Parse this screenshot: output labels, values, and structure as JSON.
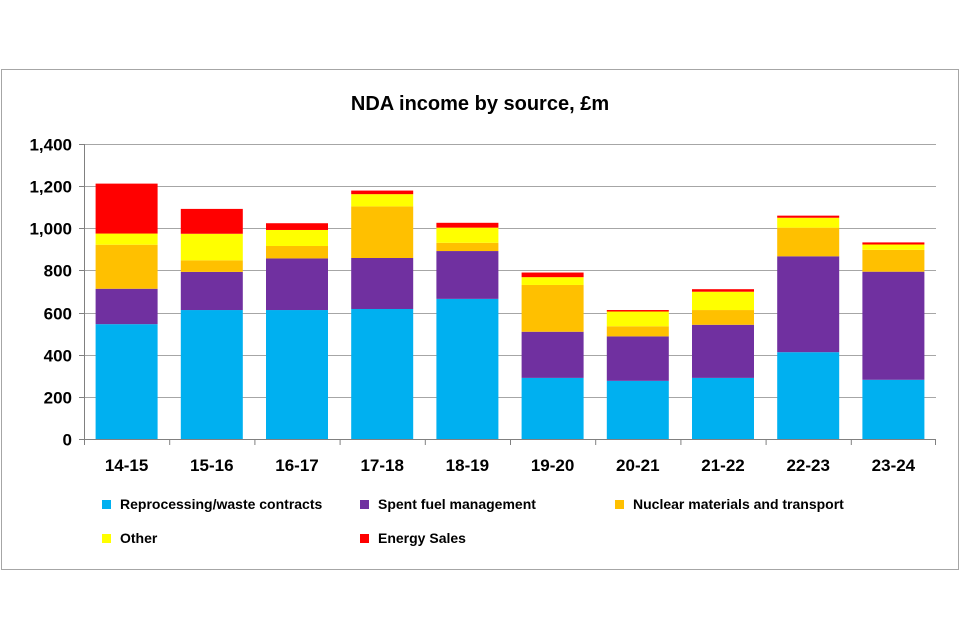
{
  "chart_data": {
    "type": "bar",
    "stacked": true,
    "title": "NDA income by source, £m",
    "xlabel": "",
    "ylabel": "",
    "ylim": [
      0,
      1400
    ],
    "yticks": [
      0,
      200,
      400,
      600,
      800,
      1000,
      1200,
      1400
    ],
    "ytick_labels": [
      "0",
      "200",
      "400",
      "600",
      "800",
      "1,000",
      "1,200",
      "1,400"
    ],
    "grid": true,
    "legend_position": "bottom",
    "categories": [
      "14-15",
      "15-16",
      "16-17",
      "17-18",
      "18-19",
      "19-20",
      "20-21",
      "21-22",
      "22-23",
      "23-24"
    ],
    "series": [
      {
        "name": "Reprocessing/waste contracts",
        "color": "#00b0f0",
        "values": [
          545,
          612,
          612,
          617,
          665,
          290,
          276,
          290,
          412,
          281
        ]
      },
      {
        "name": "Spent fuel management",
        "color": "#7030a0",
        "values": [
          168,
          181,
          245,
          242,
          227,
          219,
          211,
          252,
          455,
          513
        ]
      },
      {
        "name": "Nuclear materials and transport",
        "color": "#ffc000",
        "values": [
          209,
          55,
          59,
          245,
          39,
          222,
          48,
          70,
          136,
          104
        ]
      },
      {
        "name": "Other",
        "color": "#ffff00",
        "values": [
          53,
          126,
          76,
          58,
          72,
          37,
          70,
          87,
          47,
          25
        ]
      },
      {
        "name": "Energy Sales",
        "color": "#ff0000",
        "values": [
          237,
          118,
          32,
          17,
          23,
          22,
          7,
          12,
          10,
          10
        ]
      }
    ]
  }
}
